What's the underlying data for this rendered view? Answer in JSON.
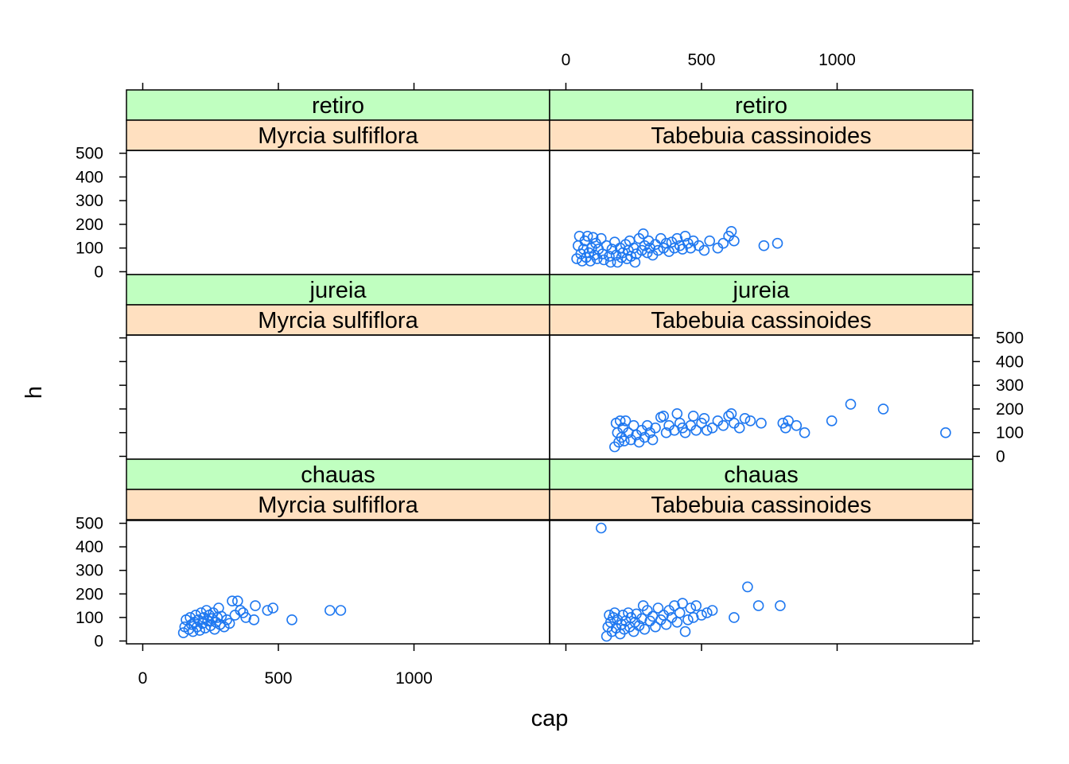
{
  "chart_data": {
    "type": "scatter",
    "layout": "lattice 2 columns x 3 rows",
    "xlabel": "cap",
    "ylabel": "h",
    "xlim": [
      -60,
      1500
    ],
    "ylim": [
      -12,
      512
    ],
    "x_ticks": [
      0,
      500,
      1000
    ],
    "y_ticks": [
      0,
      100,
      200,
      300,
      400,
      500
    ],
    "colors": {
      "point": "#1f78f0",
      "strip_site": "#c0ffc0",
      "strip_species": "#ffe0c0",
      "frame": "#000000"
    },
    "panels": [
      {
        "row": "top",
        "col": "left",
        "site": "retiro",
        "species": "Myrcia sulfiflora",
        "points": []
      },
      {
        "row": "top",
        "col": "right",
        "site": "retiro",
        "species": "Tabebuia cassinoides",
        "points": [
          [
            40,
            55
          ],
          [
            45,
            110
          ],
          [
            50,
            150
          ],
          [
            55,
            75
          ],
          [
            60,
            45
          ],
          [
            65,
            95
          ],
          [
            70,
            130
          ],
          [
            75,
            60
          ],
          [
            80,
            150
          ],
          [
            85,
            80
          ],
          [
            90,
            45
          ],
          [
            95,
            100
          ],
          [
            100,
            145
          ],
          [
            105,
            70
          ],
          [
            110,
            120
          ],
          [
            115,
            55
          ],
          [
            120,
            95
          ],
          [
            130,
            140
          ],
          [
            135,
            75
          ],
          [
            140,
            50
          ],
          [
            150,
            110
          ],
          [
            160,
            65
          ],
          [
            165,
            40
          ],
          [
            170,
            95
          ],
          [
            180,
            125
          ],
          [
            185,
            70
          ],
          [
            190,
            40
          ],
          [
            200,
            100
          ],
          [
            205,
            60
          ],
          [
            210,
            80
          ],
          [
            220,
            115
          ],
          [
            225,
            55
          ],
          [
            230,
            90
          ],
          [
            235,
            130
          ],
          [
            240,
            65
          ],
          [
            250,
            100
          ],
          [
            255,
            40
          ],
          [
            260,
            75
          ],
          [
            270,
            140
          ],
          [
            280,
            90
          ],
          [
            285,
            160
          ],
          [
            290,
            110
          ],
          [
            300,
            80
          ],
          [
            305,
            130
          ],
          [
            310,
            100
          ],
          [
            320,
            70
          ],
          [
            330,
            115
          ],
          [
            340,
            90
          ],
          [
            350,
            140
          ],
          [
            360,
            100
          ],
          [
            370,
            120
          ],
          [
            380,
            85
          ],
          [
            390,
            125
          ],
          [
            400,
            100
          ],
          [
            410,
            140
          ],
          [
            420,
            110
          ],
          [
            430,
            95
          ],
          [
            440,
            150
          ],
          [
            450,
            120
          ],
          [
            460,
            100
          ],
          [
            470,
            130
          ],
          [
            490,
            110
          ],
          [
            510,
            90
          ],
          [
            530,
            130
          ],
          [
            560,
            100
          ],
          [
            580,
            120
          ],
          [
            600,
            150
          ],
          [
            610,
            170
          ],
          [
            620,
            130
          ],
          [
            730,
            110
          ],
          [
            780,
            120
          ]
        ]
      },
      {
        "row": "middle",
        "col": "left",
        "site": "jureia",
        "species": "Myrcia sulfiflora",
        "points": []
      },
      {
        "row": "middle",
        "col": "right",
        "site": "jureia",
        "species": "Tabebuia cassinoides",
        "points": [
          [
            180,
            40
          ],
          [
            185,
            140
          ],
          [
            190,
            100
          ],
          [
            195,
            60
          ],
          [
            200,
            150
          ],
          [
            205,
            80
          ],
          [
            210,
            120
          ],
          [
            215,
            65
          ],
          [
            220,
            150
          ],
          [
            230,
            100
          ],
          [
            240,
            70
          ],
          [
            250,
            130
          ],
          [
            260,
            90
          ],
          [
            270,
            60
          ],
          [
            280,
            110
          ],
          [
            290,
            80
          ],
          [
            300,
            130
          ],
          [
            310,
            100
          ],
          [
            320,
            70
          ],
          [
            330,
            120
          ],
          [
            350,
            165
          ],
          [
            360,
            170
          ],
          [
            370,
            100
          ],
          [
            380,
            130
          ],
          [
            400,
            110
          ],
          [
            410,
            180
          ],
          [
            420,
            140
          ],
          [
            430,
            120
          ],
          [
            440,
            100
          ],
          [
            460,
            130
          ],
          [
            470,
            170
          ],
          [
            480,
            110
          ],
          [
            500,
            140
          ],
          [
            510,
            160
          ],
          [
            520,
            110
          ],
          [
            540,
            120
          ],
          [
            560,
            150
          ],
          [
            580,
            130
          ],
          [
            600,
            170
          ],
          [
            610,
            180
          ],
          [
            620,
            140
          ],
          [
            640,
            120
          ],
          [
            660,
            160
          ],
          [
            680,
            150
          ],
          [
            720,
            140
          ],
          [
            800,
            140
          ],
          [
            810,
            120
          ],
          [
            820,
            150
          ],
          [
            850,
            130
          ],
          [
            880,
            100
          ],
          [
            980,
            150
          ],
          [
            1050,
            220
          ],
          [
            1170,
            200
          ],
          [
            1400,
            100
          ]
        ]
      },
      {
        "row": "bottom",
        "col": "left",
        "site": "chauas",
        "species": "Myrcia sulfiflora",
        "points": [
          [
            150,
            35
          ],
          [
            155,
            60
          ],
          [
            160,
            90
          ],
          [
            170,
            50
          ],
          [
            175,
            100
          ],
          [
            180,
            70
          ],
          [
            185,
            40
          ],
          [
            190,
            80
          ],
          [
            195,
            110
          ],
          [
            200,
            60
          ],
          [
            205,
            90
          ],
          [
            210,
            45
          ],
          [
            215,
            120
          ],
          [
            220,
            75
          ],
          [
            225,
            100
          ],
          [
            230,
            55
          ],
          [
            235,
            130
          ],
          [
            240,
            85
          ],
          [
            245,
            110
          ],
          [
            250,
            65
          ],
          [
            255,
            95
          ],
          [
            260,
            120
          ],
          [
            265,
            50
          ],
          [
            270,
            80
          ],
          [
            275,
            100
          ],
          [
            280,
            140
          ],
          [
            285,
            70
          ],
          [
            290,
            105
          ],
          [
            300,
            60
          ],
          [
            310,
            90
          ],
          [
            320,
            75
          ],
          [
            330,
            170
          ],
          [
            340,
            110
          ],
          [
            350,
            170
          ],
          [
            360,
            130
          ],
          [
            370,
            120
          ],
          [
            380,
            100
          ],
          [
            410,
            90
          ],
          [
            415,
            150
          ],
          [
            460,
            130
          ],
          [
            480,
            140
          ],
          [
            550,
            90
          ],
          [
            690,
            130
          ],
          [
            730,
            130
          ]
        ]
      },
      {
        "row": "bottom",
        "col": "right",
        "site": "chauas",
        "species": "Tabebuia cassinoides",
        "points": [
          [
            130,
            480
          ],
          [
            150,
            20
          ],
          [
            155,
            60
          ],
          [
            160,
            110
          ],
          [
            165,
            80
          ],
          [
            170,
            40
          ],
          [
            175,
            100
          ],
          [
            180,
            120
          ],
          [
            185,
            55
          ],
          [
            190,
            90
          ],
          [
            200,
            30
          ],
          [
            205,
            70
          ],
          [
            210,
            110
          ],
          [
            215,
            50
          ],
          [
            220,
            85
          ],
          [
            230,
            120
          ],
          [
            235,
            60
          ],
          [
            240,
            100
          ],
          [
            250,
            40
          ],
          [
            255,
            80
          ],
          [
            260,
            115
          ],
          [
            270,
            65
          ],
          [
            280,
            95
          ],
          [
            285,
            150
          ],
          [
            290,
            50
          ],
          [
            300,
            130
          ],
          [
            310,
            85
          ],
          [
            320,
            105
          ],
          [
            330,
            60
          ],
          [
            340,
            140
          ],
          [
            350,
            90
          ],
          [
            360,
            110
          ],
          [
            370,
            70
          ],
          [
            380,
            130
          ],
          [
            390,
            100
          ],
          [
            400,
            150
          ],
          [
            410,
            80
          ],
          [
            420,
            120
          ],
          [
            430,
            160
          ],
          [
            440,
            40
          ],
          [
            450,
            90
          ],
          [
            460,
            140
          ],
          [
            470,
            100
          ],
          [
            480,
            150
          ],
          [
            500,
            110
          ],
          [
            520,
            120
          ],
          [
            540,
            130
          ],
          [
            620,
            100
          ],
          [
            670,
            230
          ],
          [
            710,
            150
          ],
          [
            790,
            150
          ]
        ]
      }
    ]
  }
}
